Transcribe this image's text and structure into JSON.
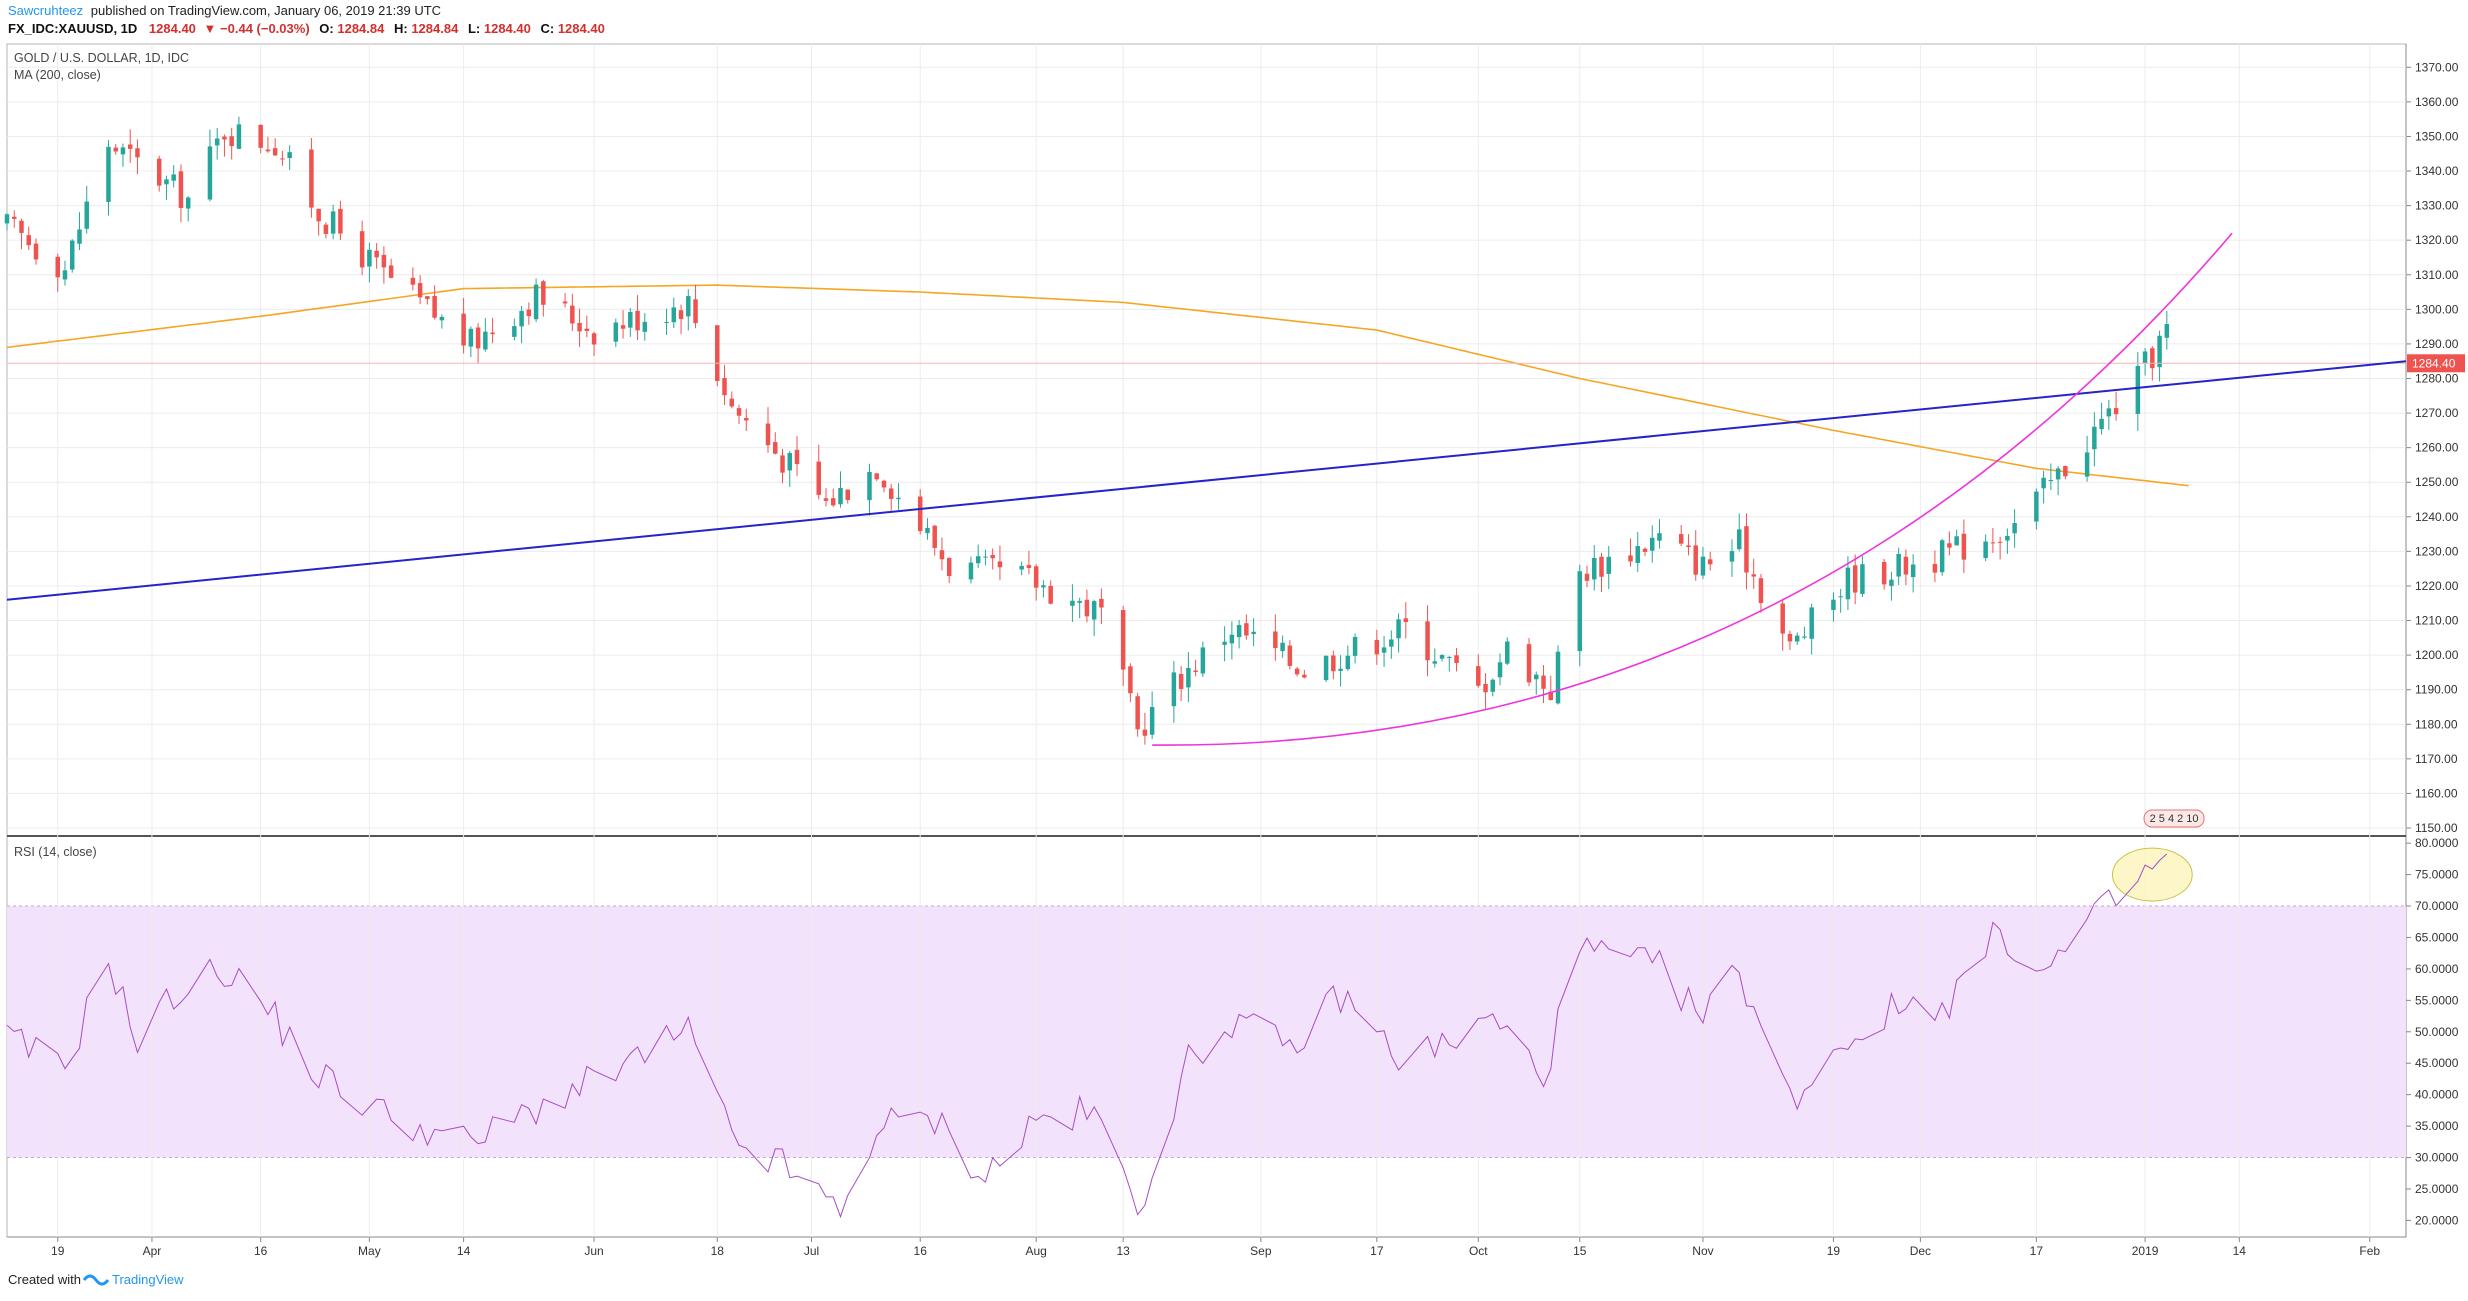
{
  "header": {
    "author": "Sawcruhteez",
    "published": "published on TradingView.com, January 06, 2019 21:39 UTC",
    "symbol": "FX_IDC:XAUUSD, 1D",
    "price": "1284.40",
    "change": "▼ −0.44 (−0.03%)",
    "o_label": "O:",
    "o_value": "1284.84",
    "h_label": "H:",
    "h_value": "1284.84",
    "l_label": "L:",
    "l_value": "1284.40",
    "c_label": "C:",
    "c_value": "1284.40"
  },
  "pane_labels": {
    "title": "GOLD / U.S. DOLLAR, 1D, IDC",
    "ma": "MA (200, close)",
    "rsi": "RSI (14, close)"
  },
  "footer": {
    "created_with": "Created with",
    "brand": "TradingView"
  },
  "colors": {
    "up": "#26a69a",
    "down": "#ef5350",
    "ma": "#f5a623",
    "rsi": "#a64ec4",
    "band": "#f3e2fb",
    "trendline": "#2424c8",
    "curve": "#ee33e0",
    "ellipse": "#fbf5bf",
    "last_price_bg": "#ef5350"
  },
  "chart_data": [
    {
      "type": "candlestick",
      "title": "GOLD / U.S. DOLLAR, 1D, IDC",
      "ylim": [
        1150,
        1375
      ],
      "y_ticks": [
        "1150.00",
        "1160.00",
        "1170.00",
        "1180.00",
        "1190.00",
        "1200.00",
        "1210.00",
        "1220.00",
        "1230.00",
        "1240.00",
        "1250.00",
        "1260.00",
        "1270.00",
        "1280.00",
        "1290.00",
        "1300.00",
        "1310.00",
        "1320.00",
        "1330.00",
        "1340.00",
        "1350.00",
        "1360.00",
        "1370.00"
      ],
      "x_range": [
        "2018-03-12",
        "2019-02-06"
      ],
      "x_ticks": [
        {
          "date": "2018-03-19",
          "label": "19"
        },
        {
          "date": "2018-04-01",
          "label": "Apr"
        },
        {
          "date": "2018-04-16",
          "label": "16"
        },
        {
          "date": "2018-05-01",
          "label": "May"
        },
        {
          "date": "2018-05-14",
          "label": "14"
        },
        {
          "date": "2018-06-01",
          "label": "Jun"
        },
        {
          "date": "2018-06-18",
          "label": "18"
        },
        {
          "date": "2018-07-01",
          "label": "Jul"
        },
        {
          "date": "2018-07-16",
          "label": "16"
        },
        {
          "date": "2018-08-01",
          "label": "Aug"
        },
        {
          "date": "2018-08-13",
          "label": "13"
        },
        {
          "date": "2018-09-01",
          "label": "Sep"
        },
        {
          "date": "2018-09-17",
          "label": "17"
        },
        {
          "date": "2018-10-01",
          "label": "Oct"
        },
        {
          "date": "2018-10-15",
          "label": "15"
        },
        {
          "date": "2018-11-01",
          "label": "Nov"
        },
        {
          "date": "2018-11-19",
          "label": "19"
        },
        {
          "date": "2018-12-01",
          "label": "Dec"
        },
        {
          "date": "2018-12-17",
          "label": "17"
        },
        {
          "date": "2019-01-01",
          "label": "2019"
        },
        {
          "date": "2019-01-14",
          "label": "14"
        },
        {
          "date": "2019-02-01",
          "label": "Feb"
        }
      ],
      "last_price": 1284.4,
      "last_price_label": "1284.40",
      "close_anchors": [
        [
          "2018-03-12",
          1324
        ],
        [
          "2018-03-20",
          1312
        ],
        [
          "2018-03-26",
          1348
        ],
        [
          "2018-04-06",
          1332
        ],
        [
          "2018-04-11",
          1352
        ],
        [
          "2018-04-18",
          1348
        ],
        [
          "2018-04-24",
          1328
        ],
        [
          "2018-05-03",
          1310
        ],
        [
          "2018-05-15",
          1290
        ],
        [
          "2018-05-24",
          1304
        ],
        [
          "2018-06-01",
          1294
        ],
        [
          "2018-06-14",
          1302
        ],
        [
          "2018-06-20",
          1272
        ],
        [
          "2018-07-03",
          1244
        ],
        [
          "2018-07-10",
          1255
        ],
        [
          "2018-07-20",
          1226
        ],
        [
          "2018-07-31",
          1222
        ],
        [
          "2018-08-10",
          1212
        ],
        [
          "2018-08-15",
          1178
        ],
        [
          "2018-08-20",
          1192
        ],
        [
          "2018-08-28",
          1208
        ],
        [
          "2018-09-07",
          1196
        ],
        [
          "2018-09-21",
          1208
        ],
        [
          "2018-10-01",
          1190
        ],
        [
          "2018-10-05",
          1202
        ],
        [
          "2018-10-11",
          1190
        ],
        [
          "2018-10-15",
          1224
        ],
        [
          "2018-10-26",
          1234
        ],
        [
          "2018-11-01",
          1226
        ],
        [
          "2018-11-06",
          1232
        ],
        [
          "2018-11-13",
          1202
        ],
        [
          "2018-11-21",
          1222
        ],
        [
          "2018-12-03",
          1228
        ],
        [
          "2018-12-14",
          1238
        ],
        [
          "2018-12-20",
          1252
        ],
        [
          "2018-12-31",
          1280
        ],
        [
          "2019-01-04",
          1294
        ],
        [
          "2019-01-06",
          1284.4
        ]
      ],
      "ma": {
        "name": "MA (200, close)",
        "anchors": [
          [
            "2018-03-12",
            1289
          ],
          [
            "2018-04-16",
            1298
          ],
          [
            "2018-05-14",
            1306
          ],
          [
            "2018-06-18",
            1307
          ],
          [
            "2018-07-16",
            1305
          ],
          [
            "2018-08-13",
            1302
          ],
          [
            "2018-09-17",
            1294
          ],
          [
            "2018-10-15",
            1280
          ],
          [
            "2018-11-19",
            1265
          ],
          [
            "2018-12-17",
            1254
          ],
          [
            "2019-01-07",
            1249
          ]
        ]
      },
      "annotations": {
        "trendline": [
          [
            "2018-03-12",
            1216
          ],
          [
            "2019-02-06",
            1285
          ]
        ],
        "curve": {
          "start": [
            "2018-08-17",
            1174
          ],
          "control": [
            "2018-11-13",
            1172
          ],
          "end": [
            "2019-01-13",
            1322
          ]
        },
        "events_badge": "2 5 4 2 10"
      }
    },
    {
      "type": "line",
      "name": "RSI (14, close)",
      "ylim": [
        18,
        80.5
      ],
      "band": [
        30,
        70
      ],
      "y_ticks": [
        "20.0000",
        "25.0000",
        "30.0000",
        "35.0000",
        "40.0000",
        "45.0000",
        "50.0000",
        "55.0000",
        "60.0000",
        "65.0000",
        "70.0000",
        "75.0000",
        "80.0000"
      ],
      "anchors": [
        [
          "2018-03-12",
          49
        ],
        [
          "2018-03-20",
          44
        ],
        [
          "2018-03-26",
          62
        ],
        [
          "2018-03-30",
          48
        ],
        [
          "2018-04-04",
          56
        ],
        [
          "2018-04-11",
          60
        ],
        [
          "2018-04-16",
          55
        ],
        [
          "2018-04-24",
          43
        ],
        [
          "2018-05-03",
          37
        ],
        [
          "2018-05-15",
          32
        ],
        [
          "2018-05-24",
          38
        ],
        [
          "2018-06-01",
          42
        ],
        [
          "2018-06-14",
          50
        ],
        [
          "2018-06-20",
          33
        ],
        [
          "2018-06-28",
          28
        ],
        [
          "2018-07-05",
          21
        ],
        [
          "2018-07-10",
          35
        ],
        [
          "2018-07-18",
          36
        ],
        [
          "2018-07-25",
          27
        ],
        [
          "2018-08-01",
          36
        ],
        [
          "2018-08-09",
          37
        ],
        [
          "2018-08-15",
          22
        ],
        [
          "2018-08-22",
          45
        ],
        [
          "2018-08-28",
          52
        ],
        [
          "2018-09-05",
          47
        ],
        [
          "2018-09-12",
          56
        ],
        [
          "2018-09-20",
          46
        ],
        [
          "2018-09-27",
          48
        ],
        [
          "2018-10-03",
          52
        ],
        [
          "2018-10-10",
          43
        ],
        [
          "2018-10-15",
          63
        ],
        [
          "2018-10-26",
          60
        ],
        [
          "2018-11-01",
          52
        ],
        [
          "2018-11-06",
          60
        ],
        [
          "2018-11-13",
          39
        ],
        [
          "2018-11-20",
          48
        ],
        [
          "2018-11-28",
          54
        ],
        [
          "2018-12-05",
          55
        ],
        [
          "2018-12-12",
          66
        ],
        [
          "2018-12-18",
          59
        ],
        [
          "2018-12-24",
          67
        ],
        [
          "2018-12-31",
          74
        ],
        [
          "2019-01-04",
          78
        ],
        [
          "2019-01-06",
          68
        ]
      ],
      "annotations": {
        "ellipse": {
          "center": [
            "2019-01-02",
            75
          ],
          "rx_days": 5.5,
          "ry": 4.2
        }
      }
    }
  ]
}
